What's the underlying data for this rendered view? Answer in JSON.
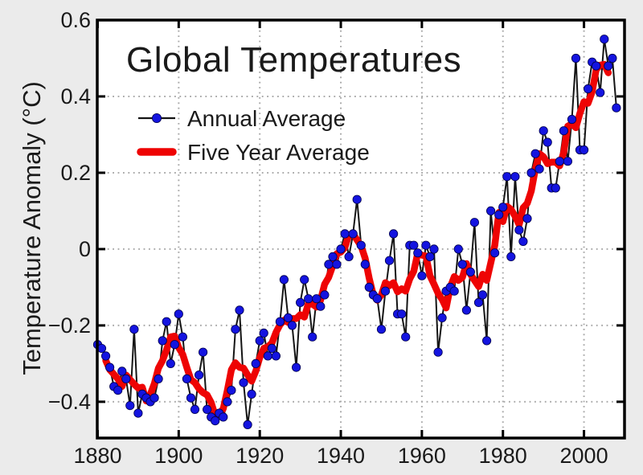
{
  "page": {
    "background_color": "#ebebeb",
    "plot_background_color": "#ffffff",
    "text_color": "#1a1a1a"
  },
  "chart_data": {
    "type": "line",
    "title": "Global Temperatures",
    "xlabel": "",
    "ylabel": "Temperature Anomaly (°C)",
    "legend_position": "top-left inside plot",
    "grid": "dotted gray, on",
    "xlim": [
      1879.9,
      2010
    ],
    "ylim": [
      -0.495,
      0.6
    ],
    "x_tick_values": [
      1880,
      1900,
      1920,
      1940,
      1960,
      1980,
      2000
    ],
    "x_tick_labels": [
      "1880",
      "1900",
      "1920",
      "1940",
      "1960",
      "1980",
      "2000"
    ],
    "y_tick_values": [
      0.6,
      0.4,
      0.2,
      0,
      -0.2,
      -0.4
    ],
    "y_tick_labels": [
      "0.6",
      "0.4",
      "0.2",
      "0",
      "−0.2",
      "−0.4"
    ],
    "grid_x_values": [
      1900,
      1920,
      1940,
      1960,
      1980,
      2000
    ],
    "grid_y_values": [
      0.4,
      0.2,
      0,
      -0.2,
      -0.4
    ],
    "series": [
      {
        "name": "Annual Average",
        "style": "thin black line with blue circular markers",
        "line_color": "#141414",
        "marker_color": "#1414e0",
        "start_year": 1880,
        "end_year": 2008,
        "values": [
          -0.25,
          -0.26,
          -0.28,
          -0.31,
          -0.36,
          -0.37,
          -0.32,
          -0.34,
          -0.41,
          -0.21,
          -0.43,
          -0.38,
          -0.39,
          -0.4,
          -0.39,
          -0.34,
          -0.24,
          -0.19,
          -0.3,
          -0.25,
          -0.17,
          -0.23,
          -0.34,
          -0.39,
          -0.42,
          -0.33,
          -0.27,
          -0.42,
          -0.44,
          -0.45,
          -0.43,
          -0.44,
          -0.4,
          -0.37,
          -0.21,
          -0.16,
          -0.35,
          -0.46,
          -0.38,
          -0.3,
          -0.24,
          -0.22,
          -0.28,
          -0.26,
          -0.28,
          -0.19,
          -0.08,
          -0.18,
          -0.2,
          -0.31,
          -0.14,
          -0.08,
          -0.13,
          -0.23,
          -0.13,
          -0.15,
          -0.12,
          -0.04,
          -0.02,
          -0.04,
          0.0,
          0.04,
          -0.02,
          0.04,
          0.13,
          0.01,
          -0.04,
          -0.1,
          -0.12,
          -0.13,
          -0.21,
          -0.11,
          -0.03,
          0.04,
          -0.17,
          -0.17,
          -0.23,
          0.01,
          0.01,
          -0.01,
          -0.07,
          0.01,
          -0.02,
          0.0,
          -0.27,
          -0.18,
          -0.11,
          -0.1,
          -0.11,
          0.0,
          -0.04,
          -0.16,
          -0.06,
          0.07,
          -0.14,
          -0.12,
          -0.24,
          0.1,
          -0.01,
          0.09,
          0.11,
          0.19,
          -0.02,
          0.19,
          0.05,
          0.02,
          0.08,
          0.2,
          0.25,
          0.21,
          0.31,
          0.28,
          0.16,
          0.16,
          0.23,
          0.31,
          0.23,
          0.34,
          0.5,
          0.26,
          0.26,
          0.42,
          0.49,
          0.48,
          0.41,
          0.55,
          0.48,
          0.5,
          0.37
        ]
      },
      {
        "name": "Five Year Average",
        "style": "thick red line",
        "line_color": "#ee0404",
        "derivation": "5-year centered moving average of Annual Average (1882-2006)"
      }
    ]
  },
  "header": {
    "title": "Global Temperatures"
  },
  "legend": {
    "items": [
      {
        "label": "Annual Average",
        "marker": "blue-dot-on-black-line"
      },
      {
        "label": "Five Year Average",
        "marker": "thick-red-line"
      }
    ]
  },
  "axes": {
    "y_title": "Temperature Anomaly (°C)"
  },
  "colors": {
    "annual_marker_blue": "#1414e0",
    "annual_line_black": "#141414",
    "five_year_red": "#ee0404",
    "grid_gray": "#aaaaaa",
    "background_gray": "#ebebeb",
    "plot_white": "#ffffff",
    "axis_black": "#000000"
  }
}
